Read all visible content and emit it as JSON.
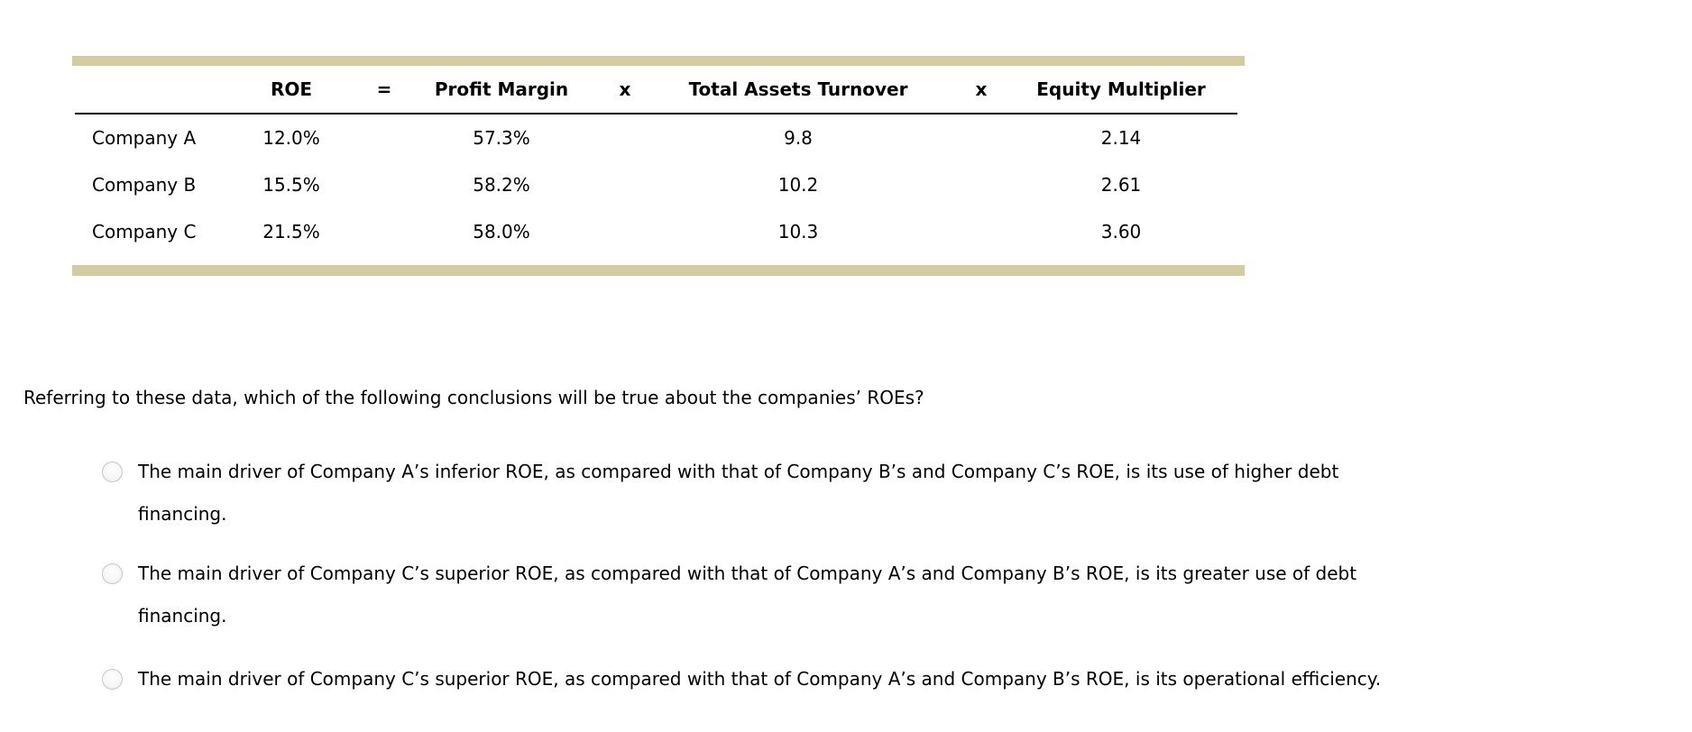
{
  "table": {
    "accent_color": "#d3cba1",
    "headers": {
      "company": "",
      "roe": "ROE",
      "equals": "=",
      "profit_margin": "Profit Margin",
      "x1": "x",
      "total_assets_turnover": "Total Assets Turnover",
      "x2": "x",
      "equity_multiplier": "Equity Multiplier"
    },
    "rows": [
      {
        "company": "Company A",
        "roe": "12.0%",
        "profit_margin": "57.3%",
        "total_assets_turnover": "9.8",
        "equity_multiplier": "2.14"
      },
      {
        "company": "Company B",
        "roe": "15.5%",
        "profit_margin": "58.2%",
        "total_assets_turnover": "10.2",
        "equity_multiplier": "2.61"
      },
      {
        "company": "Company C",
        "roe": "21.5%",
        "profit_margin": "58.0%",
        "total_assets_turnover": "10.3",
        "equity_multiplier": "3.60"
      }
    ]
  },
  "question": {
    "text": "Referring to these data, which of the following conclusions will be true about the companies’ ROEs?"
  },
  "options": [
    {
      "selected": false,
      "lines": [
        "The main driver of Company A’s inferior ROE, as compared with that of Company B’s and Company C’s ROE, is its use of higher debt",
        "financing."
      ]
    },
    {
      "selected": false,
      "lines": [
        "The main driver of Company C’s superior ROE, as compared with that of Company A’s and Company B’s ROE, is its greater use of debt",
        "financing."
      ]
    },
    {
      "selected": false,
      "lines": [
        "The main driver of Company C’s superior ROE, as compared with that of Company A’s and Company B’s ROE, is its operational efficiency."
      ]
    }
  ]
}
